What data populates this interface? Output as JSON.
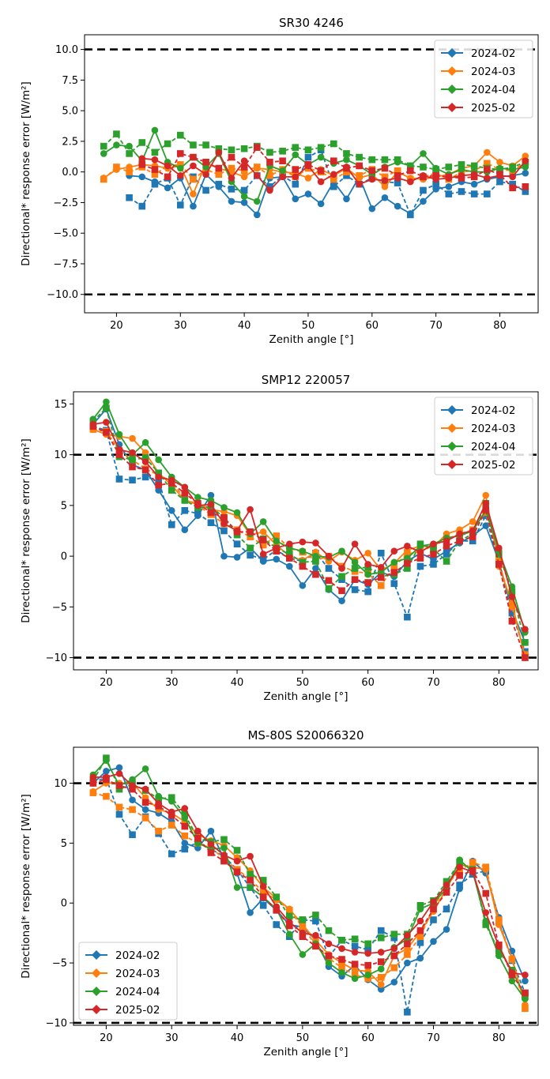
{
  "chart_data": [
    {
      "type": "line",
      "title": "SR30 4246",
      "xlabel": "Zenith angle [°]",
      "ylabel": "Directional* response error [W/m²]",
      "xlim": [
        15,
        86
      ],
      "ylim": [
        -11.5,
        11.2
      ],
      "xticks": [
        20,
        30,
        40,
        50,
        60,
        70,
        80
      ],
      "yticks": [
        -10.0,
        -7.5,
        -5.0,
        -2.5,
        0.0,
        2.5,
        5.0,
        7.5,
        10.0
      ],
      "ytick_decimals": 1,
      "threshold_lines": [
        10,
        -10
      ],
      "legend_position": "top-right",
      "x": [
        18,
        20,
        22,
        24,
        26,
        28,
        30,
        32,
        34,
        36,
        38,
        40,
        42,
        44,
        46,
        48,
        50,
        52,
        54,
        56,
        58,
        60,
        62,
        64,
        66,
        68,
        70,
        72,
        74,
        76,
        78,
        80,
        82,
        84
      ],
      "series": [
        {
          "name": "2024-02",
          "color": "#1f77b4",
          "solid": [
            null,
            null,
            -0.3,
            -0.4,
            -0.8,
            -1.3,
            -0.5,
            -2.8,
            -0.2,
            -1.2,
            -2.4,
            -2.5,
            -3.5,
            -0.5,
            -0.4,
            -2.2,
            -1.8,
            -2.6,
            -0.8,
            -2.2,
            -0.4,
            -3.0,
            -2.1,
            -2.8,
            -3.4,
            -2.4,
            -1.4,
            -1.2,
            -0.8,
            -1.0,
            -0.6,
            -0.4,
            -0.3,
            -0.1
          ],
          "dashed": [
            null,
            null,
            -2.1,
            -2.8,
            -1.0,
            -0.5,
            -2.7,
            -0.4,
            -1.5,
            -1.0,
            -1.4,
            -1.5,
            -0.3,
            -1.2,
            -0.3,
            -1.0,
            1.2,
            1.8,
            -1.2,
            -0.3,
            -1.0,
            -0.5,
            -0.8,
            -0.9,
            -3.5,
            -1.5,
            -1.0,
            -1.8,
            -1.6,
            -1.8,
            -1.8,
            -0.8,
            -1.0,
            -1.6
          ]
        },
        {
          "name": "2024-03",
          "color": "#ff7f0e",
          "solid": [
            -0.5,
            0.2,
            0.4,
            0.6,
            0.5,
            0.3,
            0.5,
            -1.8,
            0.7,
            0.3,
            0.0,
            -0.4,
            0.3,
            0.2,
            0.0,
            -0.1,
            -0.5,
            0.2,
            -0.3,
            0.3,
            -0.5,
            -0.2,
            -1.2,
            0.0,
            -0.5,
            -0.6,
            -0.4,
            -0.2,
            0.3,
            0.5,
            1.6,
            0.8,
            0.5,
            1.3
          ],
          "dashed": [
            -0.6,
            0.4,
            0.0,
            0.4,
            -0.2,
            0.5,
            0.6,
            -0.6,
            0.2,
            -0.2,
            0.3,
            0.1,
            0.4,
            -0.3,
            0.2,
            -0.4,
            0.3,
            0.0,
            -0.6,
            0.0,
            -0.3,
            0.2,
            -0.4,
            0.1,
            -0.6,
            -0.4,
            -0.1,
            -0.6,
            0.0,
            0.1,
            0.7,
            0.2,
            0.1,
            0.8
          ]
        },
        {
          "name": "2024-04",
          "color": "#2ca02c",
          "solid": [
            1.5,
            2.2,
            2.1,
            0.9,
            3.4,
            0.8,
            0.3,
            1.2,
            0.4,
            1.5,
            -0.8,
            -2.0,
            -2.4,
            0.5,
            0.1,
            1.4,
            0.6,
            1.2,
            0.7,
            1.0,
            0.5,
            -0.2,
            0.4,
            0.8,
            0.5,
            1.5,
            0.3,
            -0.2,
            0.2,
            0.0,
            0.0,
            0.3,
            0.2,
            0.4
          ],
          "dashed": [
            2.1,
            3.1,
            1.5,
            2.4,
            1.6,
            2.3,
            3.0,
            2.2,
            2.2,
            1.9,
            1.8,
            1.9,
            2.1,
            1.6,
            1.7,
            2.0,
            1.8,
            2.0,
            2.3,
            1.5,
            1.2,
            1.0,
            1.0,
            1.0,
            0.5,
            0.4,
            0.2,
            0.4,
            0.6,
            0.5,
            0.3,
            0.2,
            0.4,
            0.8
          ]
        },
        {
          "name": "2025-02",
          "color": "#d62728",
          "solid": [
            null,
            null,
            null,
            1.1,
            1.0,
            0.5,
            -0.3,
            0.5,
            -0.2,
            1.6,
            -0.5,
            0.9,
            -0.3,
            -1.5,
            -0.4,
            -0.4,
            0.5,
            -0.8,
            -0.2,
            0.4,
            -1.0,
            -0.6,
            -0.7,
            -0.5,
            -0.8,
            -0.3,
            -0.6,
            -0.5,
            -0.3,
            -0.2,
            -0.5,
            -0.3,
            -0.4,
            0.9
          ],
          "dashed": [
            null,
            null,
            null,
            0.6,
            0.2,
            -0.4,
            1.5,
            1.2,
            0.8,
            0.3,
            1.2,
            0.4,
            2.0,
            0.8,
            0.9,
            0.2,
            0.6,
            0.1,
            0.9,
            0.3,
            0.5,
            0.1,
            0.3,
            -0.3,
            0.1,
            -0.4,
            -0.3,
            -0.4,
            -0.5,
            -0.4,
            0.2,
            -0.2,
            -1.3,
            -1.2
          ]
        }
      ]
    },
    {
      "type": "line",
      "title": "SMP12 220057",
      "xlabel": "Zenith angle [°]",
      "ylabel": "Directional* response error [W/m²]",
      "xlim": [
        15,
        86
      ],
      "ylim": [
        -11.2,
        16.2
      ],
      "xticks": [
        20,
        30,
        40,
        50,
        60,
        70,
        80
      ],
      "yticks": [
        -10,
        -5,
        0,
        5,
        10,
        15
      ],
      "ytick_decimals": 0,
      "threshold_lines": [
        10,
        -10
      ],
      "legend_position": "top-right",
      "x": [
        18,
        20,
        22,
        24,
        26,
        28,
        30,
        32,
        34,
        36,
        38,
        40,
        42,
        44,
        46,
        48,
        50,
        52,
        54,
        56,
        58,
        60,
        62,
        64,
        66,
        68,
        70,
        72,
        74,
        76,
        78,
        80,
        82,
        84
      ],
      "series": [
        {
          "name": "2024-02",
          "color": "#1f77b4",
          "solid": [
            13.0,
            14.5,
            11.0,
            9.0,
            8.5,
            6.5,
            4.5,
            2.6,
            4.0,
            6.0,
            0.0,
            -0.1,
            0.8,
            -0.5,
            -0.3,
            -1.0,
            -2.9,
            -1.2,
            -3.3,
            -4.4,
            -2.3,
            -2.8,
            -1.6,
            -2.0,
            -0.5,
            0.3,
            -0.3,
            0.5,
            1.3,
            2.0,
            3.0,
            -0.5,
            -5.3,
            -8.5
          ],
          "dashed": [
            12.8,
            12.4,
            7.6,
            7.5,
            7.8,
            7.5,
            3.1,
            4.5,
            4.2,
            3.3,
            2.5,
            1.2,
            0.1,
            -0.3,
            0.6,
            -0.2,
            -0.5,
            0.3,
            -1.2,
            -2.3,
            -3.3,
            -3.5,
            0.3,
            -2.7,
            -6.0,
            -1.0,
            -0.8,
            0.2,
            1.5,
            1.5,
            4.0,
            -0.8,
            -5.6,
            -9.4
          ]
        },
        {
          "name": "2024-03",
          "color": "#ff7f0e",
          "solid": [
            12.5,
            12.0,
            11.8,
            11.6,
            10.2,
            8.2,
            7.0,
            5.5,
            5.2,
            4.6,
            4.4,
            4.0,
            2.1,
            2.4,
            1.1,
            0.0,
            -0.4,
            0.4,
            -0.5,
            0.4,
            -0.4,
            0.3,
            -1.4,
            -0.7,
            0.6,
            1.0,
            0.9,
            2.2,
            2.6,
            3.4,
            6.0,
            -1.0,
            -4.6,
            -10.0
          ],
          "dashed": [
            12.5,
            12.3,
            10.4,
            9.5,
            8.6,
            8.0,
            7.4,
            5.6,
            5.0,
            4.1,
            3.2,
            2.6,
            1.9,
            1.1,
            2.0,
            0.8,
            0.4,
            -0.4,
            0.0,
            -1.0,
            -1.5,
            -1.7,
            -2.9,
            -1.0,
            0.2,
            0.5,
            1.0,
            1.7,
            2.2,
            2.6,
            4.3,
            -0.5,
            -5.0,
            -9.7
          ]
        },
        {
          "name": "2024-04",
          "color": "#2ca02c",
          "solid": [
            13.5,
            15.2,
            12.0,
            10.0,
            11.2,
            9.5,
            7.8,
            6.8,
            5.8,
            5.5,
            4.8,
            4.3,
            2.2,
            3.4,
            1.5,
            0.8,
            0.5,
            0.0,
            -0.1,
            0.5,
            -0.6,
            -1.8,
            -1.6,
            -0.6,
            -0.2,
            1.0,
            1.2,
            1.8,
            2.0,
            2.5,
            4.5,
            0.5,
            -3.0,
            -7.5
          ],
          "dashed": [
            13.3,
            14.6,
            9.8,
            9.5,
            9.7,
            8.2,
            6.5,
            5.5,
            4.8,
            4.9,
            3.8,
            2.1,
            0.8,
            1.7,
            0.8,
            0.2,
            -0.6,
            -0.5,
            -3.2,
            -2.0,
            -1.2,
            -1.1,
            -2.0,
            -1.8,
            -1.2,
            1.2,
            0.7,
            -0.5,
            1.5,
            2.2,
            5.2,
            0.2,
            -3.5,
            -8.5
          ]
        },
        {
          "name": "2025-02",
          "color": "#d62728",
          "solid": [
            13.0,
            13.2,
            10.5,
            10.2,
            9.3,
            7.8,
            7.5,
            6.8,
            5.0,
            5.1,
            3.2,
            2.5,
            4.6,
            0.2,
            0.8,
            1.2,
            1.4,
            1.3,
            0.0,
            -1.2,
            1.2,
            -0.8,
            -1.1,
            0.5,
            1.0,
            0.4,
            1.2,
            1.5,
            2.2,
            2.5,
            5.2,
            0.8,
            -4.0,
            -7.2
          ],
          "dashed": [
            12.8,
            12.2,
            10.0,
            8.8,
            8.5,
            7.0,
            7.2,
            6.2,
            5.2,
            4.3,
            3.8,
            2.4,
            2.4,
            1.6,
            0.5,
            -0.2,
            -1.0,
            -1.8,
            -2.4,
            -3.4,
            -2.3,
            -2.6,
            -2.1,
            -1.6,
            -0.7,
            -0.2,
            0.2,
            1.0,
            1.5,
            1.9,
            4.6,
            -0.8,
            -6.4,
            -10.0
          ]
        }
      ]
    },
    {
      "type": "line",
      "title": "MS-80S S20066320",
      "xlabel": "Zenith angle [°]",
      "ylabel": "Directional* response error [W/m²]",
      "xlim": [
        15,
        86
      ],
      "ylim": [
        -10.2,
        13.0
      ],
      "xticks": [
        20,
        30,
        40,
        50,
        60,
        70,
        80
      ],
      "yticks": [
        -10,
        -5,
        0,
        5,
        10
      ],
      "ytick_decimals": 0,
      "threshold_lines": [
        10,
        -10
      ],
      "legend_position": "bottom-left",
      "x": [
        18,
        20,
        22,
        24,
        26,
        28,
        30,
        32,
        34,
        36,
        38,
        40,
        42,
        44,
        46,
        48,
        50,
        52,
        54,
        56,
        58,
        60,
        62,
        64,
        66,
        68,
        70,
        72,
        74,
        76,
        78,
        80,
        82,
        84
      ],
      "series": [
        {
          "name": "2024-02",
          "color": "#1f77b4",
          "solid": [
            10.0,
            11.0,
            11.3,
            8.6,
            7.8,
            7.5,
            6.8,
            5.0,
            4.6,
            6.0,
            3.7,
            2.5,
            -0.8,
            0.4,
            -0.6,
            -1.8,
            -2.0,
            -3.1,
            -5.3,
            -6.1,
            -5.2,
            -6.4,
            -7.2,
            -6.6,
            -5.0,
            -4.6,
            -3.2,
            -2.2,
            1.2,
            3.5,
            2.5,
            -1.2,
            -4.0,
            -6.5
          ],
          "dashed": [
            10.2,
            10.4,
            7.4,
            5.7,
            7.2,
            5.8,
            4.1,
            4.5,
            5.1,
            4.5,
            3.9,
            2.8,
            1.3,
            -0.2,
            -1.8,
            -2.8,
            -1.4,
            -1.5,
            -4.5,
            -3.1,
            -3.6,
            -3.9,
            -2.3,
            -2.9,
            -9.1,
            -3.3,
            -1.4,
            -0.5,
            1.5,
            2.4,
            2.7,
            -1.6,
            -4.8,
            -7.5
          ]
        },
        {
          "name": "2024-03",
          "color": "#ff7f0e",
          "solid": [
            9.3,
            10.0,
            10.0,
            10.0,
            8.8,
            7.8,
            7.5,
            6.8,
            5.7,
            5.2,
            4.8,
            3.8,
            2.7,
            1.3,
            0.4,
            -0.5,
            -1.8,
            -3.1,
            -4.3,
            -5.0,
            -5.6,
            -5.7,
            -6.8,
            -4.4,
            -3.8,
            -2.4,
            -0.7,
            1.2,
            3.2,
            3.0,
            2.8,
            -1.8,
            -4.6,
            -8.5
          ],
          "dashed": [
            9.2,
            8.9,
            8.0,
            7.8,
            7.1,
            6.0,
            6.5,
            5.6,
            5.0,
            4.6,
            3.7,
            2.8,
            2.0,
            0.9,
            0.3,
            -0.6,
            -2.0,
            -3.5,
            -4.6,
            -5.4,
            -6.0,
            -6.3,
            -6.2,
            -5.4,
            -4.3,
            -2.8,
            -0.4,
            1.5,
            2.7,
            3.4,
            3.0,
            -1.4,
            -4.7,
            -8.8
          ]
        },
        {
          "name": "2024-04",
          "color": "#2ca02c",
          "solid": [
            10.7,
            11.9,
            9.8,
            10.3,
            11.2,
            8.9,
            8.5,
            7.1,
            5.0,
            4.5,
            4.6,
            1.3,
            1.3,
            0.5,
            -0.5,
            -2.6,
            -4.3,
            -3.4,
            -5.0,
            -5.8,
            -6.3,
            -6.0,
            -5.5,
            -3.7,
            -3.0,
            -0.5,
            0.0,
            1.2,
            3.6,
            2.6,
            -1.5,
            -4.4,
            -6.5,
            -8.0
          ],
          "dashed": [
            10.2,
            12.1,
            9.5,
            9.9,
            9.4,
            8.7,
            8.8,
            7.4,
            5.4,
            5.1,
            5.3,
            4.4,
            2.4,
            1.9,
            0.5,
            -1.1,
            -1.4,
            -1.0,
            -2.3,
            -3.1,
            -3.0,
            -3.4,
            -2.9,
            -2.6,
            -2.6,
            -0.2,
            0.2,
            1.8,
            3.4,
            2.8,
            -1.8,
            -4.0,
            -5.6,
            -7.8
          ]
        },
        {
          "name": "2025-02",
          "color": "#d62728",
          "solid": [
            10.5,
            10.5,
            10.8,
            9.8,
            9.5,
            8.3,
            7.6,
            7.9,
            6.0,
            4.9,
            4.0,
            3.5,
            3.9,
            1.4,
            -0.3,
            -1.6,
            -2.5,
            -2.7,
            -3.4,
            -3.8,
            -4.1,
            -4.2,
            -4.1,
            -3.8,
            -2.7,
            -1.5,
            0.1,
            1.5,
            3.0,
            2.6,
            -0.8,
            -3.6,
            -5.8,
            -6.0
          ],
          "dashed": [
            10.0,
            10.3,
            9.8,
            9.5,
            8.4,
            8.1,
            7.3,
            6.4,
            5.4,
            4.2,
            3.5,
            2.6,
            1.9,
            0.5,
            -0.6,
            -1.9,
            -2.8,
            -3.6,
            -4.4,
            -4.7,
            -5.1,
            -5.2,
            -4.9,
            -4.4,
            -3.4,
            -2.3,
            -0.5,
            0.9,
            2.3,
            2.7,
            0.8,
            -3.5,
            -6.0,
            -7.5
          ]
        }
      ]
    }
  ]
}
